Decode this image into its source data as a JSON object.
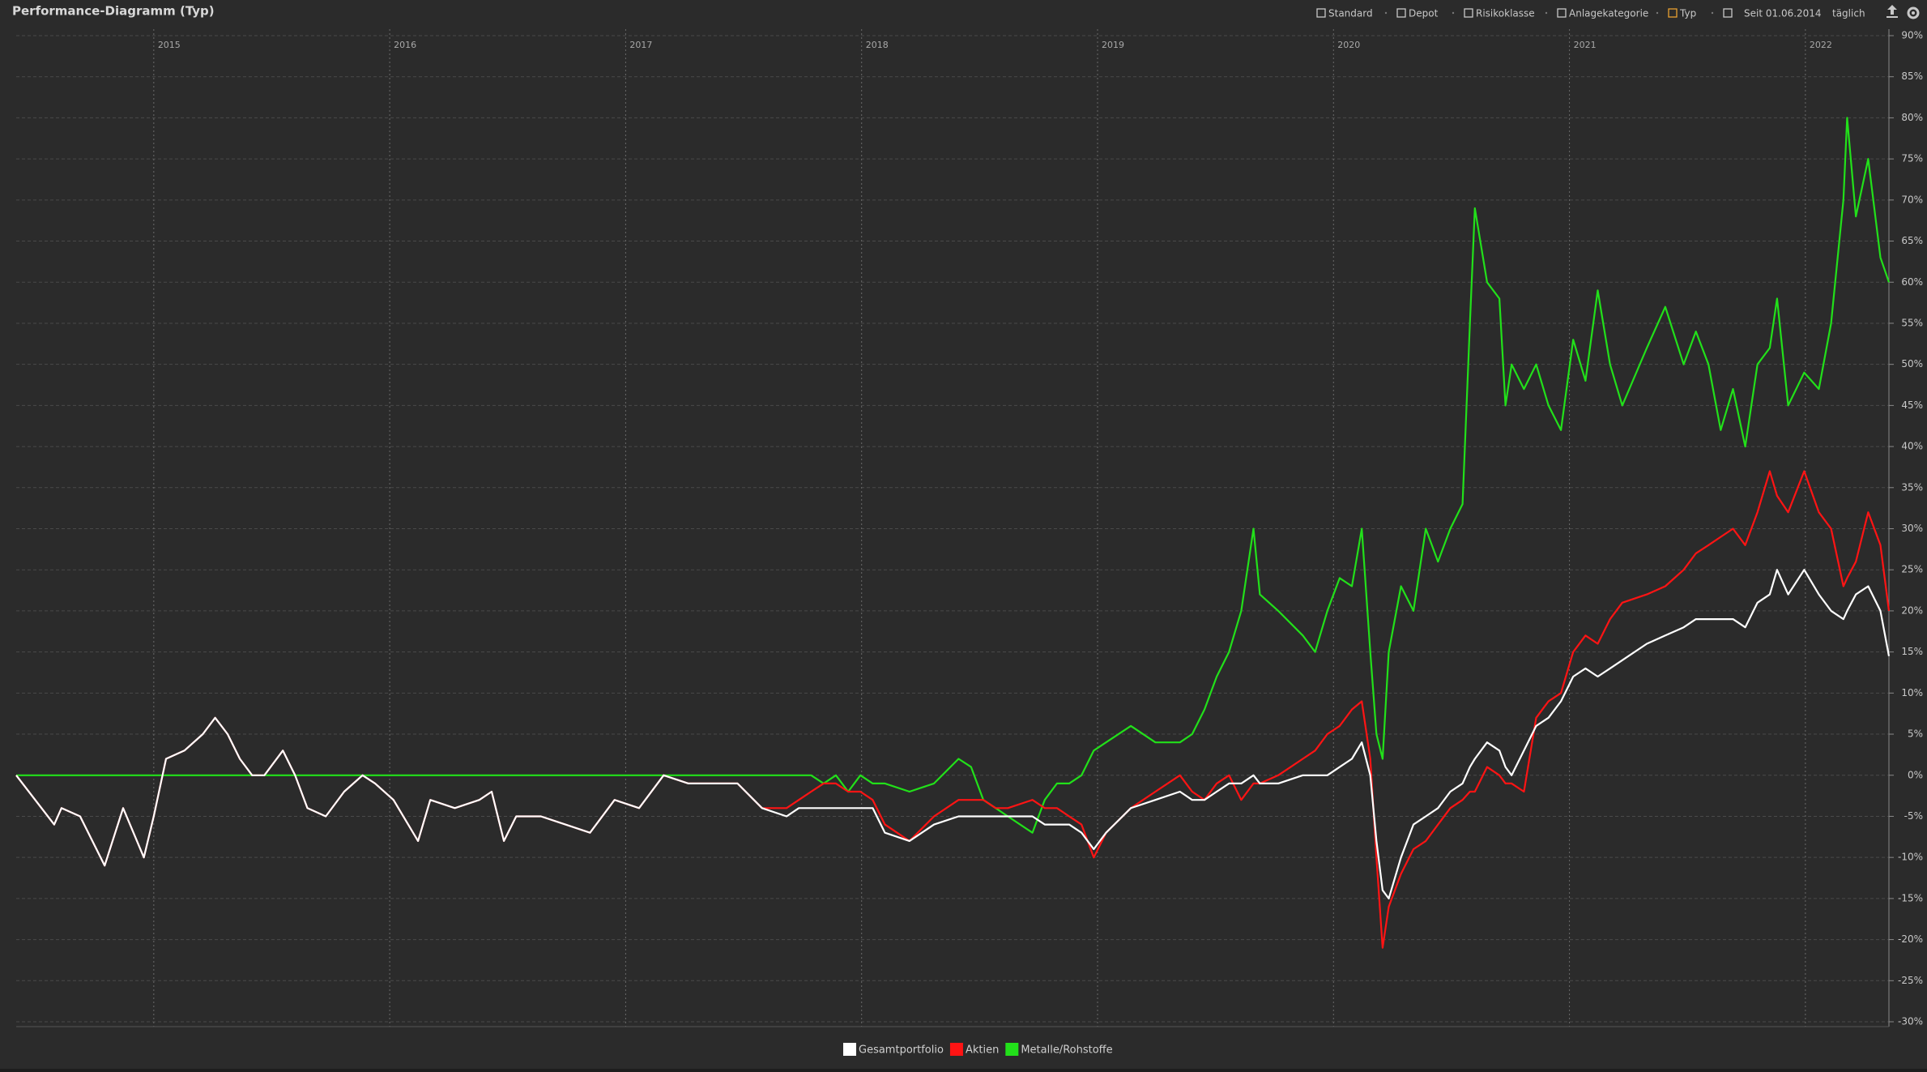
{
  "toolbar": {
    "items": [
      "Standard",
      "Depot",
      "Risikoklasse",
      "Anlagekategorie",
      "Typ",
      "Seit 01.06.2014",
      "täglich"
    ]
  },
  "chart_data": {
    "type": "line",
    "title": "Performance-Diagramm (Typ)",
    "x": [
      2014.417,
      2014.578,
      2014.609,
      2014.688,
      2014.792,
      2014.87,
      2014.958,
      2015.0,
      2015.052,
      2015.13,
      2015.208,
      2015.26,
      2015.313,
      2015.365,
      2015.417,
      2015.469,
      2015.547,
      2015.599,
      2015.651,
      2015.729,
      2015.807,
      2015.885,
      2015.938,
      2016.016,
      2016.12,
      2016.172,
      2016.276,
      2016.38,
      2016.432,
      2016.484,
      2016.536,
      2016.641,
      2016.745,
      2016.849,
      2016.953,
      2017.057,
      2017.161,
      2017.266,
      2017.37,
      2017.474,
      2017.578,
      2017.682,
      2017.734,
      2017.786,
      2017.839,
      2017.891,
      2017.943,
      2017.995,
      2018.047,
      2018.099,
      2018.203,
      2018.307,
      2018.411,
      2018.464,
      2018.516,
      2018.568,
      2018.62,
      2018.724,
      2018.776,
      2018.828,
      2018.88,
      2018.932,
      2018.984,
      2019.036,
      2019.141,
      2019.245,
      2019.349,
      2019.401,
      2019.453,
      2019.505,
      2019.557,
      2019.609,
      2019.661,
      2019.688,
      2019.766,
      2019.87,
      2019.922,
      2019.974,
      2020.026,
      2020.078,
      2020.12,
      2020.156,
      2020.182,
      2020.208,
      2020.234,
      2020.286,
      2020.339,
      2020.391,
      2020.443,
      2020.495,
      2020.547,
      2020.578,
      2020.599,
      2020.651,
      2020.703,
      2020.729,
      2020.755,
      2020.807,
      2020.859,
      2020.911,
      2020.964,
      2021.016,
      2021.068,
      2021.12,
      2021.172,
      2021.224,
      2021.328,
      2021.406,
      2021.484,
      2021.536,
      2021.589,
      2021.641,
      2021.693,
      2021.745,
      2021.797,
      2021.849,
      2021.88,
      2021.927,
      2021.995,
      2022.057,
      2022.109,
      2022.161,
      2022.177,
      2022.214,
      2022.266,
      2022.318,
      2022.354
    ],
    "series": [
      {
        "name": "Gesamtportfolio",
        "color": "#ffffff",
        "values": [
          0,
          -6,
          -4,
          -5,
          -11,
          -4,
          -10,
          -5,
          2,
          3,
          5,
          7,
          5,
          2,
          0,
          0,
          3,
          0,
          -4,
          -5,
          -2,
          0,
          -1,
          -3,
          -8,
          -3,
          -4,
          -3,
          -2,
          -8,
          -5,
          -5,
          -6,
          -7,
          -3,
          -4,
          0,
          -1,
          -1,
          -1,
          -4,
          -5,
          -4,
          -4,
          -4,
          -4,
          -4,
          -4,
          -4,
          -7,
          -8,
          -6,
          -5,
          -5,
          -5,
          -5,
          -5,
          -5,
          -6,
          -6,
          -6,
          -7,
          -9,
          -7,
          -4,
          -3,
          -2,
          -3,
          -3,
          -2,
          -1,
          -1,
          0,
          -1,
          -1,
          0,
          0,
          0,
          1,
          2,
          4,
          0,
          -8,
          -14,
          -15,
          -10,
          -6,
          -5,
          -4,
          -2,
          -1,
          1,
          2,
          4,
          3,
          1,
          0,
          3,
          6,
          7,
          9,
          12,
          13,
          12,
          13,
          14,
          16,
          17,
          18,
          19,
          19,
          19,
          19,
          18,
          21,
          22,
          25,
          22,
          25,
          22,
          20,
          19,
          20,
          22,
          23,
          20,
          14.5
        ]
      },
      {
        "name": "Aktien",
        "color": "#ff1414",
        "values": [
          0,
          -6,
          -4,
          -5,
          -11,
          -4,
          -10,
          -5,
          2,
          3,
          5,
          7,
          5,
          2,
          0,
          0,
          3,
          0,
          -4,
          -5,
          -2,
          0,
          -1,
          -3,
          -8,
          -3,
          -4,
          -3,
          -2,
          -8,
          -5,
          -5,
          -6,
          -7,
          -3,
          -4,
          0,
          -1,
          -1,
          -1,
          -4,
          -4,
          -3,
          -2,
          -1,
          -1,
          -2,
          -2,
          -3,
          -6,
          -8,
          -5,
          -3,
          -3,
          -3,
          -4,
          -4,
          -3,
          -4,
          -4,
          -5,
          -6,
          -10,
          -7,
          -4,
          -2,
          0,
          -2,
          -3,
          -1,
          0,
          -3,
          -1,
          -1,
          0,
          2,
          3,
          5,
          6,
          8,
          9,
          2,
          -10,
          -21,
          -16,
          -12,
          -9,
          -8,
          -6,
          -4,
          -3,
          -2,
          -2,
          1,
          0,
          -1,
          -1,
          -2,
          7,
          9,
          10,
          15,
          17,
          16,
          19,
          21,
          22,
          23,
          25,
          27,
          28,
          29,
          30,
          28,
          32,
          37,
          34,
          32,
          37,
          32,
          30,
          23,
          24,
          26,
          32,
          28,
          20
        ]
      },
      {
        "name": "Metalle/Rohstoffe",
        "color": "#22e01a",
        "values": [
          0,
          0,
          0,
          0,
          0,
          0,
          0,
          0,
          0,
          0,
          0,
          0,
          0,
          0,
          0,
          0,
          0,
          0,
          0,
          0,
          0,
          0,
          0,
          0,
          0,
          0,
          0,
          0,
          0,
          0,
          0,
          0,
          0,
          0,
          0,
          0,
          0,
          0,
          0,
          0,
          0,
          0,
          0,
          0,
          -1,
          0,
          -2,
          0,
          -1,
          -1,
          -2,
          -1,
          2,
          1,
          -3,
          -4,
          -5,
          -7,
          -3,
          -1,
          -1,
          0,
          3,
          4,
          6,
          4,
          4,
          5,
          8,
          12,
          15,
          20,
          30,
          22,
          20,
          17,
          15,
          20,
          24,
          23,
          30,
          15,
          5,
          2,
          15,
          23,
          20,
          30,
          26,
          30,
          33,
          55,
          69,
          60,
          58,
          45,
          50,
          47,
          50,
          45,
          42,
          53,
          48,
          59,
          50,
          45,
          52,
          57,
          50,
          54,
          50,
          42,
          47,
          40,
          50,
          52,
          58,
          45,
          49,
          47,
          55,
          70,
          80,
          68,
          75,
          63,
          60
        ]
      }
    ],
    "xlim": [
      2014.417,
      2022.354
    ],
    "xticks": [
      2015,
      2016,
      2017,
      2018,
      2019,
      2020,
      2021,
      2022
    ],
    "ylim": [
      -30,
      90
    ],
    "yticks": [
      {
        "value": -30,
        "label": "-30%"
      },
      {
        "value": -25,
        "label": "-25%"
      },
      {
        "value": -20,
        "label": "-20%"
      },
      {
        "value": -15,
        "label": "-15%"
      },
      {
        "value": -10,
        "label": "-10%"
      },
      {
        "value": -5,
        "label": "-5%"
      },
      {
        "value": 0,
        "label": "0%"
      },
      {
        "value": 5,
        "label": "5%"
      },
      {
        "value": 10,
        "label": "10%"
      },
      {
        "value": 15,
        "label": "15%"
      },
      {
        "value": 20,
        "label": "20%"
      },
      {
        "value": 25,
        "label": "25%"
      },
      {
        "value": 30,
        "label": "30%"
      },
      {
        "value": 35,
        "label": "35%"
      },
      {
        "value": 40,
        "label": "40%"
      },
      {
        "value": 45,
        "label": "45%"
      },
      {
        "value": 50,
        "label": "50%"
      },
      {
        "value": 55,
        "label": "55%"
      },
      {
        "value": 60,
        "label": "60%"
      },
      {
        "value": 65,
        "label": "65%"
      },
      {
        "value": 70,
        "label": "70%"
      },
      {
        "value": 75,
        "label": "75%"
      },
      {
        "value": 80,
        "label": "80%"
      },
      {
        "value": 85,
        "label": "85%"
      },
      {
        "value": 90,
        "label": "90%"
      }
    ],
    "grid": true,
    "legend": "bottom"
  }
}
